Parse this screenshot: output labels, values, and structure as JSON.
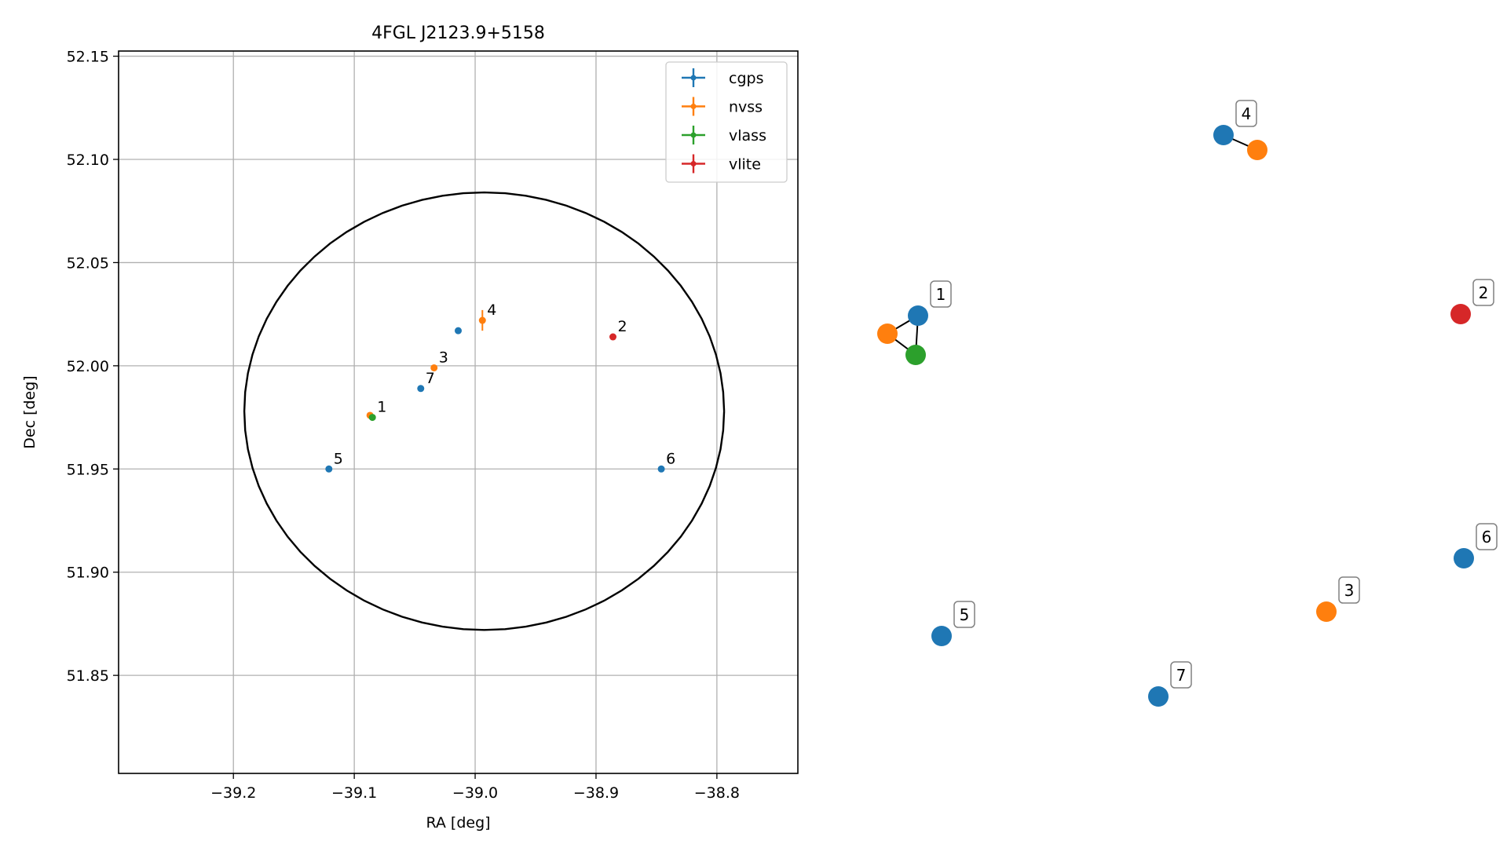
{
  "colors": {
    "cgps": "#1f77b4",
    "nvss": "#ff7f0e",
    "vlass": "#2ca02c",
    "vlite": "#d62728",
    "ellipse": "#000000",
    "grid": "#b0b0b0",
    "label_box_border": "#808080"
  },
  "chart_data": [
    {
      "type": "scatter",
      "title": "4FGL J2123.9+5158",
      "xlabel": "RA [deg]",
      "ylabel": "Dec [deg]",
      "xlim": [
        -39.295,
        -38.733
      ],
      "ylim": [
        51.8025,
        52.1525
      ],
      "xticks": [
        -39.2,
        -39.1,
        -39.0,
        -38.9,
        -38.8
      ],
      "xtick_labels": [
        "−39.2",
        "−39.1",
        "−39.0",
        "−38.9",
        "−38.8"
      ],
      "yticks": [
        51.85,
        51.9,
        51.95,
        52.0,
        52.05,
        52.1,
        52.15
      ],
      "ytick_labels": [
        "51.85",
        "51.90",
        "51.95",
        "52.00",
        "52.05",
        "52.10",
        "52.15"
      ],
      "grid": true,
      "legend_position": "top-right",
      "ellipse": {
        "ra_center": -38.9925,
        "dec_center": 51.978,
        "ra_half_width": 0.1985,
        "dec_half_height": 0.106
      },
      "series": [
        {
          "name": "cgps",
          "points": [
            {
              "ra": -39.014,
              "dec": 52.017,
              "label": ""
            },
            {
              "ra": -39.121,
              "dec": 51.95,
              "label": "5"
            },
            {
              "ra": -38.846,
              "dec": 51.95,
              "label": "6"
            },
            {
              "ra": -39.045,
              "dec": 51.989,
              "label": "7"
            }
          ]
        },
        {
          "name": "nvss",
          "points": [
            {
              "ra": -38.994,
              "dec": 52.022,
              "label": "4",
              "dec_err": 0.005
            },
            {
              "ra": -39.034,
              "dec": 51.999,
              "label": "3"
            },
            {
              "ra": -39.087,
              "dec": 51.976,
              "label": ""
            }
          ]
        },
        {
          "name": "vlass",
          "points": [
            {
              "ra": -39.085,
              "dec": 51.975,
              "label": "1"
            }
          ]
        },
        {
          "name": "vlite",
          "points": [
            {
              "ra": -38.886,
              "dec": 52.014,
              "label": "2"
            }
          ]
        }
      ]
    },
    {
      "type": "scatter",
      "title": "",
      "grid": false,
      "nodes": [
        {
          "series": "cgps",
          "label": "1"
        },
        {
          "series": "nvss",
          "label": ""
        },
        {
          "series": "vlass",
          "label": ""
        },
        {
          "series": "cgps",
          "label": "4"
        },
        {
          "series": "nvss",
          "label": ""
        },
        {
          "series": "vlite",
          "label": "2"
        },
        {
          "series": "cgps",
          "label": "6"
        },
        {
          "series": "nvss",
          "label": "3"
        },
        {
          "series": "cgps",
          "label": "5"
        },
        {
          "series": "cgps",
          "label": "7"
        }
      ],
      "links": [
        [
          0,
          1
        ],
        [
          1,
          2
        ],
        [
          2,
          0
        ],
        [
          3,
          4
        ]
      ]
    }
  ]
}
